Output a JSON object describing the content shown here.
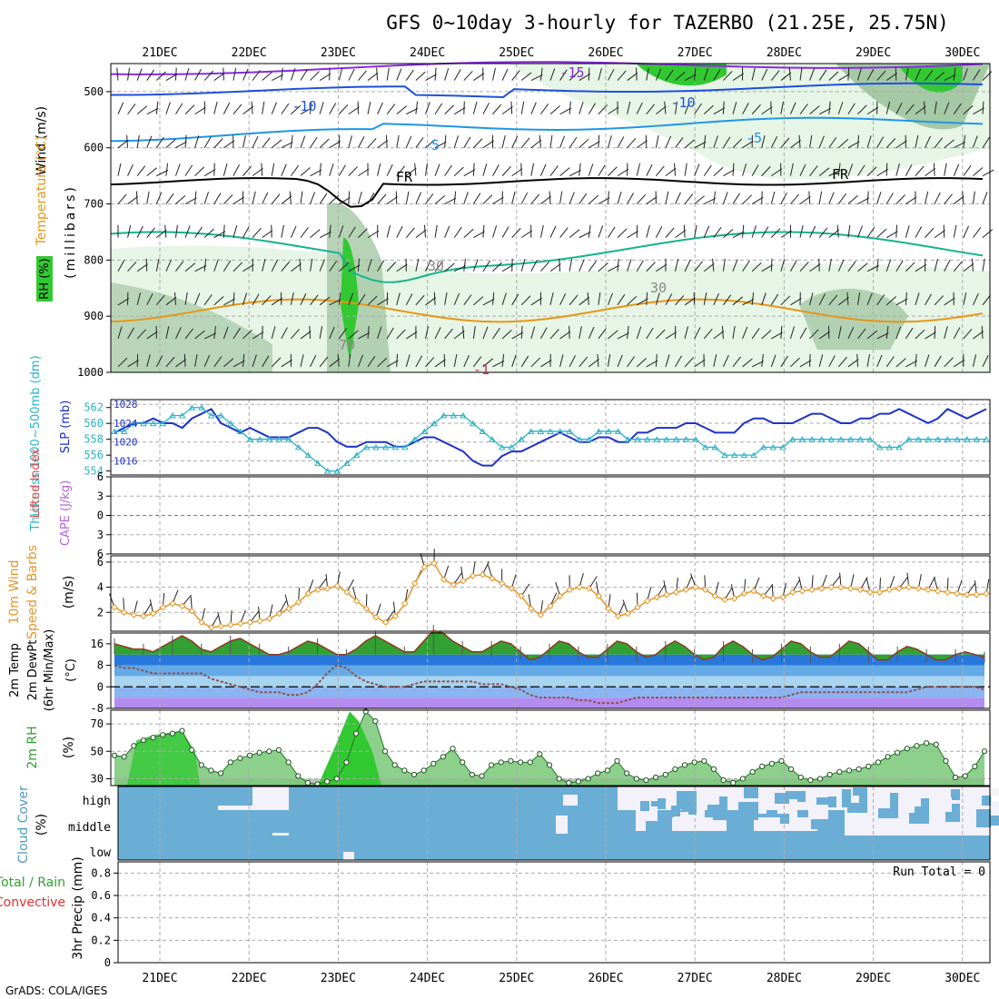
{
  "title": "GFS 0~10day 3-hourly for TAZERBO (21.25E, 25.75N)",
  "footer": "GrADS: COLA/IGES",
  "dates": [
    "21DEC",
    "22DEC",
    "23DEC",
    "24DEC",
    "25DEC",
    "26DEC",
    "27DEC",
    "28DEC",
    "29DEC",
    "30DEC"
  ],
  "colors": {
    "grid": "#aaaaaa",
    "barb": "#222222",
    "t_purple": "#8a2be2",
    "t_blue": "#1e50dc",
    "t_cyan": "#1e96e6",
    "t_fr": "#000000",
    "t_green": "#14b48c",
    "t_orange": "#e69614",
    "rh_light": "#e6f5e6",
    "rh_mid": "#a5c8a5",
    "rh_dark": "#32c832",
    "slp": "#1e32c8",
    "thick": "#28b4c8",
    "li_zero": "#e05050",
    "wind10": "#e69628",
    "tmax": "#32a032",
    "dew": "#8c5050",
    "rh2m": "#32c832",
    "rh2m_line": "#1e781e",
    "cloud": "#6aaed6",
    "cloud_gap": "#f3f1f9"
  },
  "panels": {
    "upper": {
      "ylabels_rotated": [
        {
          "text": "Wind (m/s)",
          "color": "#000000"
        },
        {
          "text": "Temperature (°C)",
          "color": "#e69614"
        },
        {
          "text": "RH (%)",
          "color": "#32c832"
        },
        {
          "text": "(millibars)",
          "color": "#000000"
        }
      ],
      "ticks": [
        "500",
        "600",
        "700",
        "800",
        "900",
        "1000"
      ],
      "contour_labels": [
        "-15",
        "-10",
        "-10",
        "-5",
        "-5",
        "FR",
        "FR",
        "30",
        "30",
        "70",
        "-1"
      ]
    },
    "slp": {
      "label_thick": "Thickness 1000~500mb (dm)",
      "label_slp": "SLP (mb)",
      "ticks_left": [
        "562",
        "560",
        "558",
        "556",
        "554"
      ],
      "ticks_right": [
        "1028",
        "1024",
        "1020",
        "1016"
      ]
    },
    "cape": {
      "label_li": "Lifted Index",
      "label_cape": "CAPE (J/kg)",
      "ticks": [
        "6",
        "3",
        "0",
        "3",
        "6"
      ]
    },
    "wind10": {
      "label_a": "10m Wind",
      "label_b": "Speed & Barbs",
      "label_c": "(m/s)",
      "ticks": [
        "6",
        "4",
        "2"
      ]
    },
    "temp2m": {
      "label_a": "2m Temp",
      "label_b": "2m DewPt",
      "label_c": "(6hr Min/Max)",
      "label_d": "(°C)",
      "ticks": [
        "16",
        "8",
        "0",
        "-8"
      ]
    },
    "rh2m": {
      "label_a": "2m RH",
      "label_b": "(%)",
      "ticks": [
        "70",
        "50",
        "30"
      ]
    },
    "cloud": {
      "label_a": "Cloud Cover",
      "label_b": "(%)",
      "levels": [
        "high",
        "middle",
        "low"
      ]
    },
    "precip": {
      "label_a": "Total / Rain",
      "label_b": "Convective",
      "label_c": "3hr Precip (mm)",
      "run_total": "Run Total = 0",
      "ticks": [
        "0.8",
        "0.6",
        "0.4",
        "0.2",
        "0"
      ]
    }
  },
  "chart_data": [
    {
      "type": "line",
      "title": "GFS 0~10day 3-hourly for TAZERBO (21.25E, 25.75N)",
      "series": [
        {
          "name": "SLP (mb)",
          "axis": "right",
          "ylim": [
            1013,
            1029
          ],
          "values": [
            1022,
            1023,
            1024,
            1024,
            1025,
            1024,
            1024,
            1023,
            1025,
            1026,
            1027,
            1024,
            1023,
            1022,
            1023,
            1022,
            1021,
            1021,
            1021,
            1022,
            1023,
            1023,
            1022,
            1020,
            1019,
            1019,
            1020,
            1020,
            1020,
            1019,
            1019,
            1020,
            1021,
            1021,
            1020,
            1019,
            1018,
            1016,
            1015,
            1015,
            1017,
            1018,
            1018,
            1019,
            1020,
            1021,
            1022,
            1021,
            1020,
            1020,
            1021,
            1021,
            1020,
            1020,
            1022,
            1022,
            1023,
            1023,
            1023,
            1024,
            1024,
            1023,
            1022,
            1022,
            1022,
            1024,
            1025,
            1025,
            1024,
            1024,
            1024,
            1025,
            1026,
            1026,
            1025,
            1024,
            1024,
            1025,
            1025,
            1026,
            1026,
            1027,
            1026,
            1025,
            1024,
            1025,
            1027,
            1026,
            1025,
            1026,
            1027
          ]
        },
        {
          "name": "Thickness 1000~500mb (dm)",
          "axis": "left",
          "ylim": [
            553.5,
            563
          ],
          "values": [
            559,
            559,
            560,
            560,
            560,
            560,
            561,
            561,
            562,
            562,
            561,
            561,
            560,
            559,
            558,
            558,
            558,
            558,
            558,
            557,
            556,
            555,
            554,
            554,
            555,
            556,
            557,
            557,
            557,
            557,
            557,
            558,
            559,
            560,
            561,
            561,
            561,
            560,
            559,
            558,
            557,
            557,
            558,
            559,
            559,
            559,
            559,
            559,
            558,
            558,
            559,
            559,
            559,
            558,
            558,
            558,
            558,
            558,
            558,
            558,
            558,
            557,
            557,
            556,
            556,
            556,
            556,
            557,
            557,
            557,
            558,
            558,
            558,
            558,
            558,
            558,
            558,
            558,
            558,
            557,
            557,
            557,
            558,
            558,
            558,
            558,
            558,
            558,
            558,
            558,
            558
          ]
        },
        {
          "name": "10m Wind Speed (m/s)",
          "ylim": [
            0.5,
            6.5
          ],
          "values": [
            2.4,
            2.0,
            1.8,
            1.7,
            1.9,
            2.4,
            2.7,
            2.5,
            2.1,
            1.2,
            0.8,
            0.9,
            1.0,
            1.1,
            1.2,
            1.3,
            1.5,
            1.9,
            2.3,
            2.8,
            3.5,
            3.8,
            3.9,
            4.1,
            3.6,
            2.9,
            2.3,
            1.6,
            1.2,
            1.7,
            2.7,
            4.3,
            5.6,
            5.9,
            4.6,
            4.2,
            4.5,
            4.9,
            5.0,
            4.7,
            4.3,
            3.9,
            3.3,
            2.3,
            1.8,
            2.5,
            3.3,
            3.8,
            4.0,
            3.9,
            3.3,
            2.3,
            1.7,
            1.9,
            2.4,
            2.9,
            3.2,
            3.4,
            3.6,
            3.8,
            4.0,
            3.8,
            3.3,
            3.0,
            3.1,
            3.5,
            3.7,
            3.3,
            3.1,
            3.2,
            3.6,
            3.7,
            3.8,
            3.9,
            4.0,
            4.0,
            3.9,
            3.8,
            3.6,
            3.6,
            3.8,
            3.9,
            4.0,
            3.9,
            3.8,
            3.7,
            3.6,
            3.5,
            3.4,
            3.4,
            3.5
          ]
        },
        {
          "name": "2m Temp max (°C)",
          "ylim": [
            -8,
            20
          ],
          "values": [
            16,
            15,
            14,
            14,
            13,
            15,
            17,
            19,
            17,
            14,
            13,
            15,
            17,
            18,
            16,
            14,
            12,
            12,
            13,
            15,
            17,
            16,
            14,
            12,
            12,
            14,
            17,
            19,
            17,
            15,
            13,
            13,
            17,
            21,
            20,
            17,
            15,
            13,
            13,
            15,
            17,
            16,
            13,
            10,
            11,
            14,
            17,
            16,
            13,
            11,
            11,
            14,
            17,
            16,
            13,
            11,
            12,
            15,
            17,
            15,
            12,
            10,
            11,
            15,
            17,
            15,
            12,
            10,
            11,
            14,
            17,
            16,
            13,
            11,
            11,
            14,
            17,
            16,
            13,
            10,
            10,
            13,
            15,
            14,
            12,
            10,
            10,
            12,
            13,
            12,
            11
          ]
        },
        {
          "name": "2m Temp min (°C)",
          "values": [
            12,
            12,
            12,
            12,
            12,
            12,
            12,
            12,
            12,
            12,
            12,
            12,
            12,
            12,
            12,
            12,
            12,
            12,
            12,
            12,
            12,
            12,
            12,
            12,
            12,
            12,
            12,
            12,
            12,
            12,
            12,
            12,
            12,
            12,
            12,
            12,
            12,
            11,
            11,
            11,
            11,
            10,
            10,
            10,
            10,
            10,
            10,
            10,
            10,
            10,
            9,
            9,
            9,
            9,
            9,
            9,
            9,
            9,
            9,
            9,
            9,
            9,
            9,
            9,
            9,
            9,
            9,
            9,
            9,
            9,
            9,
            9,
            9,
            9,
            9,
            9,
            9,
            9,
            9,
            9,
            9,
            9,
            9,
            9,
            9,
            9,
            9,
            9,
            9,
            9,
            9
          ]
        },
        {
          "name": "2m DewPt (°C)",
          "values": [
            8,
            7,
            7,
            6,
            5,
            5,
            5,
            5,
            5,
            5,
            3,
            2,
            1,
            0,
            -1,
            -2,
            -2,
            -2,
            -3,
            -3,
            -2,
            1,
            5,
            8,
            7,
            4,
            2,
            1,
            0,
            0,
            0,
            1,
            2,
            2,
            2,
            2,
            2,
            2,
            1,
            1,
            1,
            0,
            -1,
            -3,
            -4,
            -4,
            -4,
            -4,
            -5,
            -5,
            -6,
            -6,
            -6,
            -5,
            -4,
            -4,
            -4,
            -4,
            -4,
            -4,
            -4,
            -4,
            -4,
            -4,
            -4,
            -4,
            -4,
            -4,
            -4,
            -4,
            -3,
            -2,
            -2,
            -2,
            -2,
            -2,
            -2,
            -2,
            -2,
            -2,
            -2,
            -2,
            -2,
            -1,
            0,
            0,
            0,
            0,
            0,
            0,
            -1
          ]
        },
        {
          "name": "2m RH (%)",
          "ylim": [
            25,
            80
          ],
          "values": [
            47,
            46,
            54,
            58,
            60,
            62,
            63,
            65,
            51,
            40,
            36,
            34,
            42,
            45,
            47,
            49,
            50,
            51,
            42,
            32,
            27,
            26,
            28,
            30,
            42,
            63,
            79,
            72,
            50,
            40,
            36,
            33,
            36,
            41,
            46,
            52,
            42,
            33,
            32,
            40,
            42,
            43,
            42,
            42,
            48,
            40,
            30,
            27,
            28,
            30,
            34,
            36,
            43,
            34,
            30,
            29,
            31,
            33,
            37,
            40,
            42,
            43,
            37,
            29,
            27,
            30,
            35,
            39,
            41,
            43,
            37,
            31,
            29,
            30,
            33,
            35,
            36,
            37,
            39,
            42,
            46,
            49,
            52,
            54,
            56,
            55,
            43,
            31,
            32,
            39,
            50
          ]
        },
        {
          "name": "3hr Precip (mm)",
          "values": [
            0
          ]
        }
      ]
    }
  ]
}
